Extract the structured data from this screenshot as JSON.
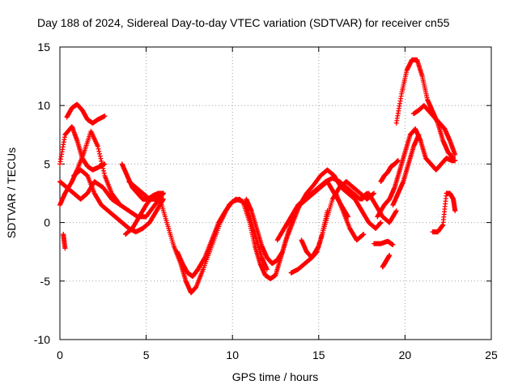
{
  "chart_data": {
    "type": "scatter",
    "title": "Day 188 of 2024, Sidereal Day-to-day VTEC variation (SDTVAR) for receiver cn55",
    "xlabel": "GPS time / hours",
    "ylabel": "SDTVAR / TECUs",
    "xlim": [
      0,
      25
    ],
    "ylim": [
      -10,
      15
    ],
    "xticks": [
      "0",
      "5",
      "10",
      "15",
      "20",
      "25"
    ],
    "yticks": [
      "-10",
      "-5",
      "0",
      "5",
      "10",
      "15"
    ],
    "grid": true,
    "marker": "+",
    "color": "#ff0000",
    "series": [
      {
        "name": "track-1",
        "x": [
          0.0,
          0.3,
          0.7,
          1.0,
          1.3,
          1.6,
          1.9,
          2.2,
          2.6
        ],
        "y": [
          5.0,
          7.5,
          8.2,
          7.0,
          5.5,
          4.8,
          4.5,
          4.7,
          5.0
        ]
      },
      {
        "name": "track-2",
        "x": [
          0.4,
          0.7,
          1.0,
          1.3,
          1.6,
          1.9,
          2.2,
          2.6
        ],
        "y": [
          9.0,
          9.8,
          10.1,
          9.6,
          8.8,
          8.5,
          8.8,
          9.1
        ]
      },
      {
        "name": "track-3",
        "x": [
          0.0,
          0.3,
          0.7,
          1.0,
          1.4,
          1.8,
          2.2,
          2.6,
          3.0,
          3.5,
          4.0,
          4.5,
          5.0,
          5.5,
          6.0
        ],
        "y": [
          1.5,
          2.5,
          3.5,
          4.5,
          6.0,
          7.8,
          6.5,
          4.0,
          2.5,
          1.5,
          1.0,
          0.5,
          0.5,
          1.5,
          2.5
        ]
      },
      {
        "name": "track-4",
        "x": [
          0.0,
          0.4,
          0.8,
          1.2,
          1.6,
          2.0,
          2.5,
          3.0,
          3.5
        ],
        "y": [
          3.5,
          3.0,
          2.5,
          2.0,
          2.5,
          3.5,
          3.0,
          2.0,
          1.5
        ]
      },
      {
        "name": "track-5",
        "x": [
          0.8,
          1.2,
          1.6,
          2.0,
          2.4,
          2.8,
          3.2,
          3.6,
          4.0,
          4.4,
          4.8,
          5.2,
          5.6,
          6.0
        ],
        "y": [
          4.0,
          4.5,
          4.0,
          2.5,
          1.5,
          1.0,
          0.5,
          0.0,
          -0.5,
          -0.8,
          -0.5,
          0.0,
          1.0,
          2.0
        ]
      },
      {
        "name": "track-6",
        "x": [
          3.6,
          3.9,
          4.2,
          4.5,
          4.8,
          5.1,
          5.4,
          5.7,
          6.0
        ],
        "y": [
          5.0,
          4.0,
          3.0,
          2.5,
          2.0,
          2.0,
          2.3,
          2.5,
          2.5
        ]
      },
      {
        "name": "track-7",
        "x": [
          4.0,
          4.4,
          4.8,
          5.2,
          5.6,
          6.0
        ],
        "y": [
          3.5,
          3.0,
          2.5,
          2.0,
          2.0,
          2.5
        ]
      },
      {
        "name": "track-8",
        "x": [
          0.2,
          0.3
        ],
        "y": [
          -1.0,
          -2.2
        ]
      },
      {
        "name": "track-9",
        "x": [
          3.8,
          4.2,
          4.6,
          5.0,
          5.4,
          5.8,
          6.2,
          6.6,
          7.0,
          7.3,
          7.6,
          7.9,
          8.3,
          8.8,
          9.3,
          9.8,
          10.2,
          10.6,
          11.0,
          11.3,
          11.6,
          11.9,
          12.2,
          12.5,
          12.8,
          13.1,
          13.5,
          13.9,
          14.3,
          14.7,
          15.1,
          15.5,
          15.9,
          16.3,
          16.7,
          17.1,
          17.5,
          17.9,
          18.3,
          18.6
        ],
        "y": [
          -1.0,
          -0.5,
          0.5,
          1.5,
          2.3,
          2.0,
          0.0,
          -2.0,
          -3.5,
          -5.0,
          -6.0,
          -5.5,
          -4.0,
          -2.0,
          0.0,
          1.5,
          2.0,
          1.8,
          0.0,
          -2.0,
          -3.5,
          -4.5,
          -4.8,
          -4.5,
          -3.0,
          -1.5,
          0.0,
          1.5,
          2.5,
          3.2,
          4.0,
          4.5,
          4.0,
          3.0,
          2.5,
          2.0,
          1.0,
          0.0,
          -0.5,
          0.0
        ]
      },
      {
        "name": "track-10",
        "x": [
          6.8,
          7.1,
          7.4,
          7.7,
          8.0,
          8.4,
          8.8,
          9.2,
          9.6,
          10.0,
          10.4,
          10.8,
          11.1,
          11.4,
          11.7,
          12.0
        ],
        "y": [
          -2.5,
          -3.5,
          -4.3,
          -4.6,
          -4.0,
          -3.0,
          -1.5,
          0.0,
          1.0,
          1.8,
          2.0,
          1.5,
          0.0,
          -1.5,
          -3.0,
          -4.0
        ]
      },
      {
        "name": "track-11",
        "x": [
          10.8,
          11.1,
          11.4,
          11.7,
          12.0,
          12.3,
          12.6,
          12.9,
          13.2,
          13.5,
          13.9,
          14.3,
          14.7,
          15.1,
          15.5,
          15.9,
          16.3,
          16.7
        ],
        "y": [
          2.0,
          1.0,
          -0.5,
          -2.0,
          -3.0,
          -3.5,
          -3.2,
          -2.5,
          -1.0,
          0.5,
          1.5,
          2.0,
          2.5,
          3.0,
          3.5,
          2.5,
          1.5,
          0.5
        ]
      },
      {
        "name": "track-12",
        "x": [
          12.6,
          13.0,
          13.4,
          13.8,
          14.2,
          14.6,
          15.0,
          15.4,
          15.8,
          16.2,
          16.6,
          17.0,
          17.4,
          17.8
        ],
        "y": [
          -1.5,
          -0.5,
          0.5,
          1.5,
          2.0,
          2.5,
          3.0,
          3.5,
          3.8,
          3.5,
          3.0,
          2.5,
          2.0,
          2.5
        ]
      },
      {
        "name": "track-13",
        "x": [
          13.4,
          13.8,
          14.2,
          14.6,
          15.0,
          15.4,
          15.8,
          16.2,
          16.6,
          17.0,
          17.4,
          17.8,
          18.2
        ],
        "y": [
          -4.3,
          -4.0,
          -3.5,
          -3.0,
          -2.0,
          0.0,
          2.0,
          3.0,
          3.5,
          3.0,
          2.5,
          2.0,
          2.5
        ]
      },
      {
        "name": "track-14",
        "x": [
          14.0,
          14.3,
          14.6,
          14.9,
          15.2,
          15.5
        ],
        "y": [
          -1.5,
          -2.5,
          -3.0,
          -2.5,
          -1.0,
          1.0
        ]
      },
      {
        "name": "track-15",
        "x": [
          16.0,
          16.4,
          16.8,
          17.2,
          17.6
        ],
        "y": [
          2.5,
          1.0,
          -0.5,
          -1.5,
          -1.0
        ]
      },
      {
        "name": "track-16",
        "x": [
          18.2,
          18.6,
          19.0,
          19.3
        ],
        "y": [
          -1.8,
          -1.8,
          -1.6,
          -1.9
        ]
      },
      {
        "name": "track-17",
        "x": [
          18.7,
          18.9,
          19.1
        ],
        "y": [
          -3.8,
          -3.3,
          -2.8
        ]
      },
      {
        "name": "track-18",
        "x": [
          18.4,
          18.8,
          19.1,
          19.4,
          19.7,
          20.0,
          20.3,
          20.6,
          20.9,
          21.2,
          21.5,
          21.8,
          22.1,
          22.4,
          22.7,
          22.9
        ],
        "y": [
          0.5,
          1.5,
          2.0,
          3.0,
          4.5,
          6.0,
          7.5,
          8.0,
          7.0,
          5.5,
          5.0,
          4.5,
          5.0,
          5.5,
          5.3,
          5.3
        ]
      },
      {
        "name": "track-19",
        "x": [
          18.6,
          18.8,
          19.0,
          19.2,
          19.4,
          19.6
        ],
        "y": [
          3.5,
          4.0,
          4.3,
          4.8,
          5.0,
          5.3
        ]
      },
      {
        "name": "track-20",
        "x": [
          19.5,
          19.8,
          20.1,
          20.4,
          20.7,
          21.0,
          21.3,
          21.6,
          21.9,
          22.2,
          22.5,
          22.8
        ],
        "y": [
          8.5,
          11.0,
          13.0,
          13.9,
          13.9,
          12.5,
          10.5,
          9.5,
          8.5,
          7.0,
          6.0,
          5.5
        ]
      },
      {
        "name": "track-21",
        "x": [
          20.5,
          20.8,
          21.1,
          21.4,
          21.7,
          22.0,
          22.3,
          22.6,
          22.9
        ],
        "y": [
          9.3,
          9.6,
          10.0,
          9.5,
          9.0,
          8.5,
          8.0,
          7.0,
          5.8
        ]
      },
      {
        "name": "track-22",
        "x": [
          21.6,
          21.9,
          22.2,
          22.4,
          22.6,
          22.8,
          22.9
        ],
        "y": [
          -0.8,
          -0.8,
          -0.2,
          2.5,
          2.5,
          2.0,
          1.0
        ]
      },
      {
        "name": "track-23",
        "x": [
          19.3,
          19.6,
          19.9,
          20.2,
          20.5,
          20.8
        ],
        "y": [
          1.5,
          2.5,
          3.5,
          5.0,
          6.5,
          7.5
        ]
      },
      {
        "name": "track-24",
        "x": [
          17.5,
          17.9,
          18.3,
          18.7,
          19.1,
          19.5
        ],
        "y": [
          2.0,
          2.5,
          1.5,
          0.5,
          0.0,
          1.0
        ]
      }
    ]
  }
}
